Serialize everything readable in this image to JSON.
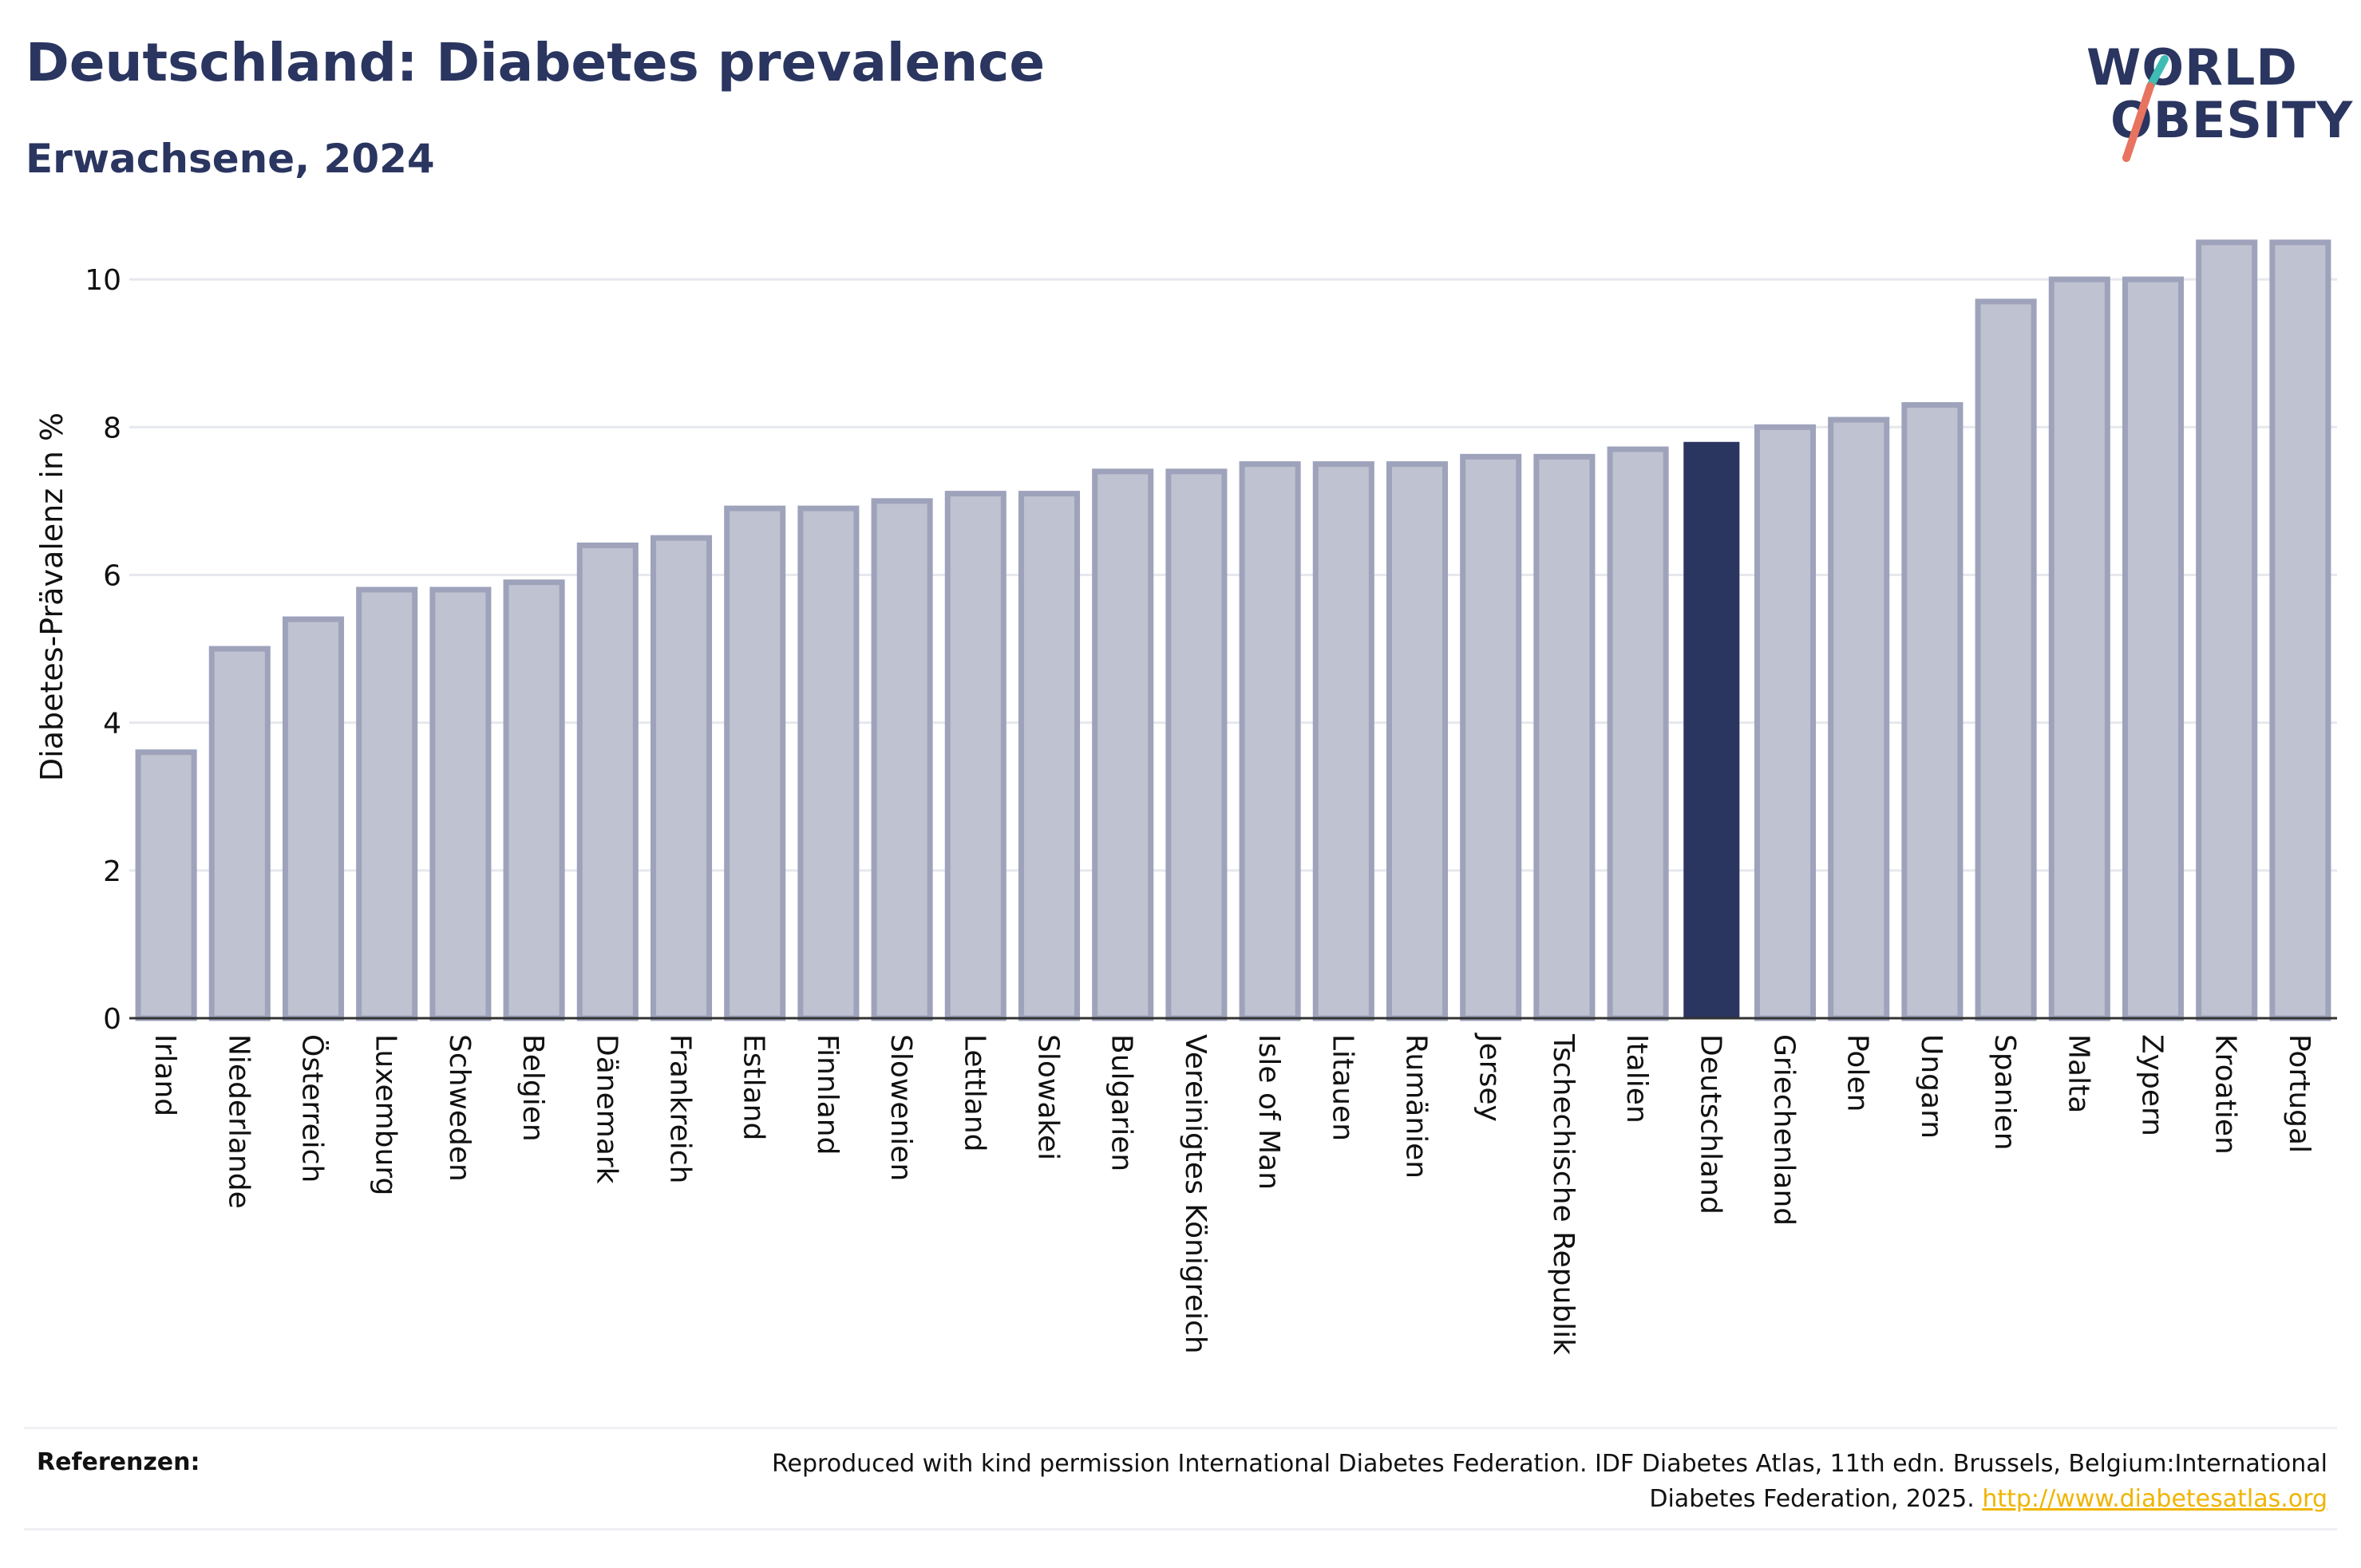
{
  "header": {
    "title": "Deutschland: Diabetes prevalence",
    "subtitle": "Erwachsene, 2024"
  },
  "logo": {
    "line1": "WORLD",
    "line2": "OBESITY",
    "accent_teal": "#3fbcb4",
    "accent_coral": "#e8735f"
  },
  "colors": {
    "bar_fill": "#bfc2d0",
    "bar_stroke": "#9ea3bb",
    "highlight": "#2a3560",
    "grid": "#e6e8ee",
    "axis": "#333333"
  },
  "chart_data": {
    "type": "bar",
    "title": "",
    "xlabel": "",
    "ylabel": "Diabetes-Prävalenz in %",
    "ylim": [
      0,
      10.8
    ],
    "yticks": [
      0,
      2,
      4,
      6,
      8,
      10
    ],
    "grid": true,
    "highlight_category": "Deutschland",
    "categories": [
      "Irland",
      "Niederlande",
      "Österreich",
      "Luxemburg",
      "Schweden",
      "Belgien",
      "Dänemark",
      "Frankreich",
      "Estland",
      "Finnland",
      "Slowenien",
      "Lettland",
      "Slowakei",
      "Bulgarien",
      "Vereinigtes Königreich",
      "Isle of Man",
      "Litauen",
      "Rumänien",
      "Jersey",
      "Tschechische Republik",
      "Italien",
      "Deutschland",
      "Griechenland",
      "Polen",
      "Ungarn",
      "Spanien",
      "Malta",
      "Zypern",
      "Kroatien",
      "Portugal"
    ],
    "values": [
      3.6,
      5.0,
      5.4,
      5.8,
      5.8,
      5.9,
      6.4,
      6.5,
      6.9,
      6.9,
      7.0,
      7.1,
      7.1,
      7.4,
      7.4,
      7.5,
      7.5,
      7.5,
      7.6,
      7.6,
      7.7,
      7.8,
      8.0,
      8.1,
      8.3,
      9.7,
      10.0,
      10.0,
      10.5,
      10.5
    ]
  },
  "references": {
    "label": "Referenzen:",
    "text": "Reproduced with kind permission International Diabetes Federation. IDF Diabetes Atlas, 11th edn. Brussels, Belgium:International Diabetes Federation, 2025.",
    "link": "http://www.diabetesatlas.org"
  }
}
